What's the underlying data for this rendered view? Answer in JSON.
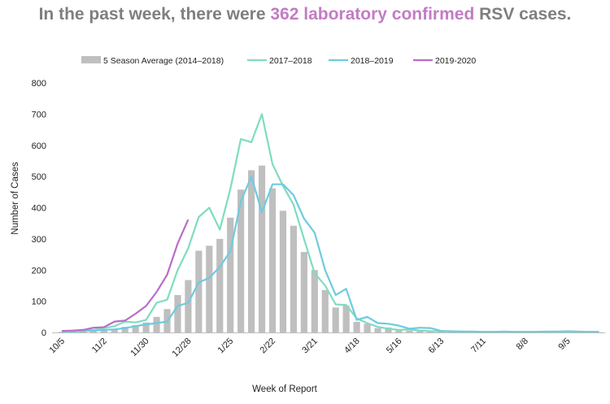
{
  "headline": {
    "prefix": "In the past week, there were",
    "highlight": "362 laboratory confirmed",
    "suffix": "RSV cases.",
    "accent_color": "#c27cc4",
    "text_color": "#7f7f7f"
  },
  "chart_data": {
    "type": "bar",
    "title": "In the past week, there were 362 laboratory confirmed RSV cases.",
    "xlabel": "Week of Report",
    "ylabel": "Number of Cases",
    "ylim": [
      0,
      800
    ],
    "yticks": [
      0,
      100,
      200,
      300,
      400,
      500,
      600,
      700,
      800
    ],
    "x_tick_labels": [
      {
        "week": 0,
        "label": "10/5"
      },
      {
        "week": 4,
        "label": "11/2"
      },
      {
        "week": 8,
        "label": "11/30"
      },
      {
        "week": 12,
        "label": "12/28"
      },
      {
        "week": 16,
        "label": "1/25"
      },
      {
        "week": 20,
        "label": "2/22"
      },
      {
        "week": 24,
        "label": "3/21"
      },
      {
        "week": 28,
        "label": "4/18"
      },
      {
        "week": 32,
        "label": "5/16"
      },
      {
        "week": 36,
        "label": "6/13"
      },
      {
        "week": 40,
        "label": "7/11"
      },
      {
        "week": 44,
        "label": "8/8"
      },
      {
        "week": 48,
        "label": "9/5"
      }
    ],
    "legend_placement": "top",
    "grid": false,
    "bars": {
      "name": "5 Season Average (2014–2018)",
      "color": "#bfbfbf",
      "values": [
        2,
        3,
        4,
        6,
        9,
        12,
        18,
        24,
        32,
        50,
        75,
        120,
        168,
        262,
        278,
        300,
        368,
        458,
        520,
        535,
        462,
        390,
        342,
        258,
        200,
        136,
        80,
        86,
        34,
        28,
        14,
        16,
        10,
        6,
        4,
        4,
        3,
        2,
        2,
        2,
        1,
        1,
        1,
        1,
        1,
        1,
        1,
        1,
        1,
        1,
        1,
        1
      ]
    },
    "series": [
      {
        "name": "2017–2018",
        "color": "#7fdcc0",
        "values": [
          5,
          5,
          6,
          8,
          14,
          20,
          35,
          32,
          40,
          95,
          105,
          200,
          270,
          370,
          400,
          330,
          460,
          620,
          610,
          700,
          540,
          470,
          410,
          300,
          190,
          150,
          90,
          88,
          45,
          30,
          18,
          12,
          8,
          10,
          6,
          4,
          4,
          3,
          3,
          2,
          2,
          2,
          2,
          2,
          2,
          2,
          2,
          2,
          2,
          2,
          2,
          2
        ]
      },
      {
        "name": "2018–2019",
        "color": "#6ecbe0",
        "values": [
          3,
          3,
          4,
          6,
          8,
          10,
          14,
          20,
          26,
          30,
          35,
          85,
          95,
          160,
          175,
          210,
          260,
          420,
          500,
          385,
          475,
          475,
          440,
          365,
          320,
          200,
          120,
          140,
          40,
          50,
          30,
          28,
          22,
          12,
          15,
          14,
          5,
          4,
          3,
          3,
          2,
          2,
          3,
          2,
          2,
          2,
          3,
          3,
          4,
          3,
          2,
          2
        ]
      },
      {
        "name": "2019-2020",
        "color": "#b86ec7",
        "values": [
          5,
          6,
          8,
          15,
          17,
          35,
          38,
          60,
          85,
          130,
          185,
          285,
          362
        ]
      }
    ]
  }
}
